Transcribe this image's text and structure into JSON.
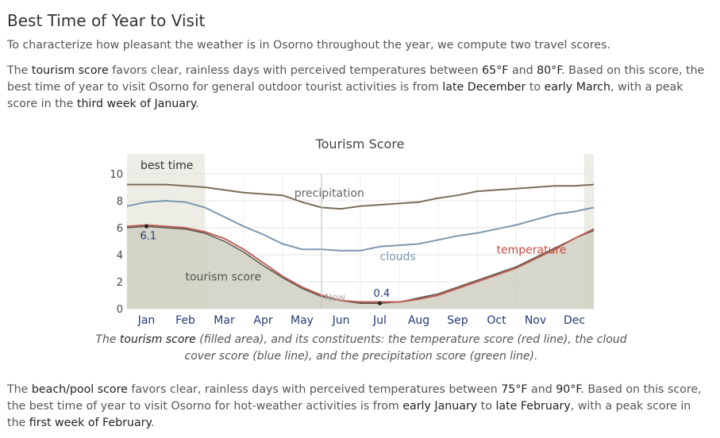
{
  "heading": "Best Time of Year to Visit",
  "intro": "To characterize how pleasant the weather is in Osorno throughout the year, we compute two travel scores.",
  "tourism_para": {
    "p1": "The ",
    "term": "tourism score",
    "p2": " favors clear, rainless days with perceived temperatures between ",
    "t_low": "65°F",
    "p3": " and ",
    "t_high": "80°F",
    "p4": ". Based on this score, the best time of year to visit Osorno for general outdoor tourist activities is from ",
    "start": "late December",
    "p5": " to ",
    "end": "early March",
    "p6": ", with a peak score in the ",
    "peak": "third week of January",
    "p7": "."
  },
  "beach_para": {
    "p1": "The ",
    "term": "beach/pool score",
    "p2": " favors clear, rainless days with perceived temperatures between ",
    "t_low": "75°F",
    "p3": " and ",
    "t_high": "90°F",
    "p4": ". Based on this score, the best time of year to visit Osorno for hot-weather activities is from ",
    "start": "early January",
    "p5": " to ",
    "end": "late February",
    "p6": ", with a peak score in the ",
    "peak": "first week of February",
    "p7": "."
  },
  "caption": {
    "p1": "The ",
    "term": "tourism score",
    "p2": " (filled area), and its constituents: the temperature score (red line), the cloud cover score (blue line), and the precipitation score (green line)."
  },
  "chart_data": {
    "type": "area",
    "title": "Tourism Score",
    "xlabel": "",
    "ylabel": "",
    "ylim": [
      0,
      10
    ],
    "yticks": [
      0,
      2,
      4,
      6,
      8,
      10
    ],
    "x_months": [
      "Jan",
      "Feb",
      "Mar",
      "Apr",
      "May",
      "Jun",
      "Jul",
      "Aug",
      "Sep",
      "Oct",
      "Nov",
      "Dec"
    ],
    "x": [
      0,
      0.5,
      1,
      1.5,
      2,
      2.5,
      3,
      3.5,
      4,
      4.5,
      5,
      5.5,
      6,
      6.5,
      7,
      7.5,
      8,
      8.5,
      9,
      9.5,
      10,
      10.5,
      11,
      11.5,
      12
    ],
    "series": [
      {
        "name": "tourism score",
        "color": "#d4d4c8",
        "values": [
          6.0,
          6.1,
          6.0,
          5.9,
          5.6,
          5.0,
          4.2,
          3.2,
          2.3,
          1.5,
          0.9,
          0.6,
          0.4,
          0.4,
          0.5,
          0.8,
          1.1,
          1.6,
          2.1,
          2.6,
          3.1,
          3.8,
          4.5,
          5.2,
          5.8
        ]
      },
      {
        "name": "temperature",
        "color": "#c06058",
        "values": [
          6.1,
          6.2,
          6.1,
          6.0,
          5.7,
          5.2,
          4.4,
          3.4,
          2.4,
          1.6,
          1.0,
          0.6,
          0.5,
          0.5,
          0.5,
          0.7,
          1.0,
          1.5,
          2.0,
          2.5,
          3.0,
          3.7,
          4.4,
          5.2,
          5.9
        ]
      },
      {
        "name": "clouds",
        "color": "#7b98b0",
        "values": [
          7.6,
          7.9,
          8.0,
          7.9,
          7.5,
          6.8,
          6.1,
          5.5,
          4.8,
          4.4,
          4.4,
          4.3,
          4.3,
          4.6,
          4.7,
          4.8,
          5.1,
          5.4,
          5.6,
          5.9,
          6.2,
          6.6,
          7.0,
          7.2,
          7.5
        ]
      },
      {
        "name": "precipitation",
        "color": "#7a6e5a",
        "values": [
          9.2,
          9.2,
          9.2,
          9.1,
          9.0,
          8.8,
          8.6,
          8.5,
          8.4,
          7.9,
          7.5,
          7.4,
          7.6,
          7.7,
          7.8,
          7.9,
          8.2,
          8.4,
          8.7,
          8.8,
          8.9,
          9.0,
          9.1,
          9.1,
          9.2
        ]
      }
    ],
    "best_time": {
      "label": "best time",
      "start": 0,
      "end": 2.0,
      "start2": 11.75,
      "end2": 12
    },
    "now_marker": {
      "label": "Now",
      "x": 5.0
    },
    "annotations": [
      {
        "label": "6.1",
        "x": 0.5,
        "y": 6.1
      },
      {
        "label": "0.4",
        "x": 6.5,
        "y": 0.4
      }
    ],
    "series_labels": [
      {
        "series": "precipitation",
        "text": "precipitation",
        "x": 4.3,
        "y": 8.3
      },
      {
        "series": "clouds",
        "text": "clouds",
        "x": 6.5,
        "y": 3.6
      },
      {
        "series": "temperature",
        "text": "temperature",
        "x": 9.5,
        "y": 4.1
      },
      {
        "series": "tourism score",
        "text": "tourism score",
        "x": 1.5,
        "y": 2.1
      }
    ],
    "grid": true
  }
}
